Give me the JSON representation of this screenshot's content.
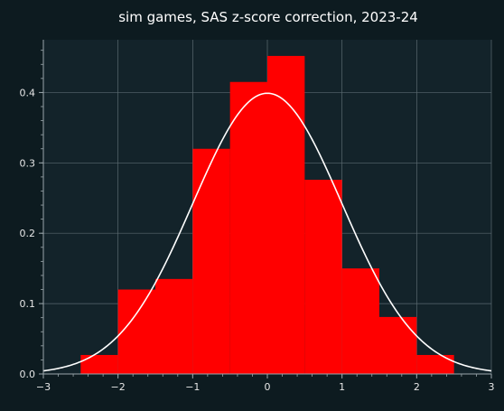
{
  "chart_data": {
    "type": "bar",
    "title": "sim games, SAS z-score correction, 2023-24",
    "xlabel": "",
    "ylabel": "",
    "xlim": [
      -3,
      3
    ],
    "ylim": [
      0,
      0.475
    ],
    "xticks": [
      -3,
      -2,
      -1,
      0,
      1,
      2,
      3
    ],
    "xtick_labels": [
      "−3",
      "−2",
      "−1",
      "0",
      "1",
      "2",
      "3"
    ],
    "yticks": [
      0.0,
      0.1,
      0.2,
      0.3,
      0.4
    ],
    "ytick_labels": [
      "0.0",
      "0.1",
      "0.2",
      "0.3",
      "0.4"
    ],
    "grid": true,
    "histogram": {
      "bin_edges": [
        -2.5,
        -2.0,
        -1.5,
        -1.0,
        -0.5,
        0.0,
        0.5,
        1.0,
        1.5,
        2.0,
        2.5
      ],
      "density": [
        0.027,
        0.12,
        0.135,
        0.32,
        0.415,
        0.452,
        0.276,
        0.15,
        0.081,
        0.027
      ],
      "color": "#ff0000"
    },
    "curve": {
      "type": "normal_pdf",
      "mean": 0,
      "std": 1,
      "color": "#ffffff"
    },
    "colors": {
      "background": "#0d1b20",
      "plot_background": "#13232a",
      "grid": "#5b6a70",
      "axes": "#9aa6ab"
    }
  }
}
